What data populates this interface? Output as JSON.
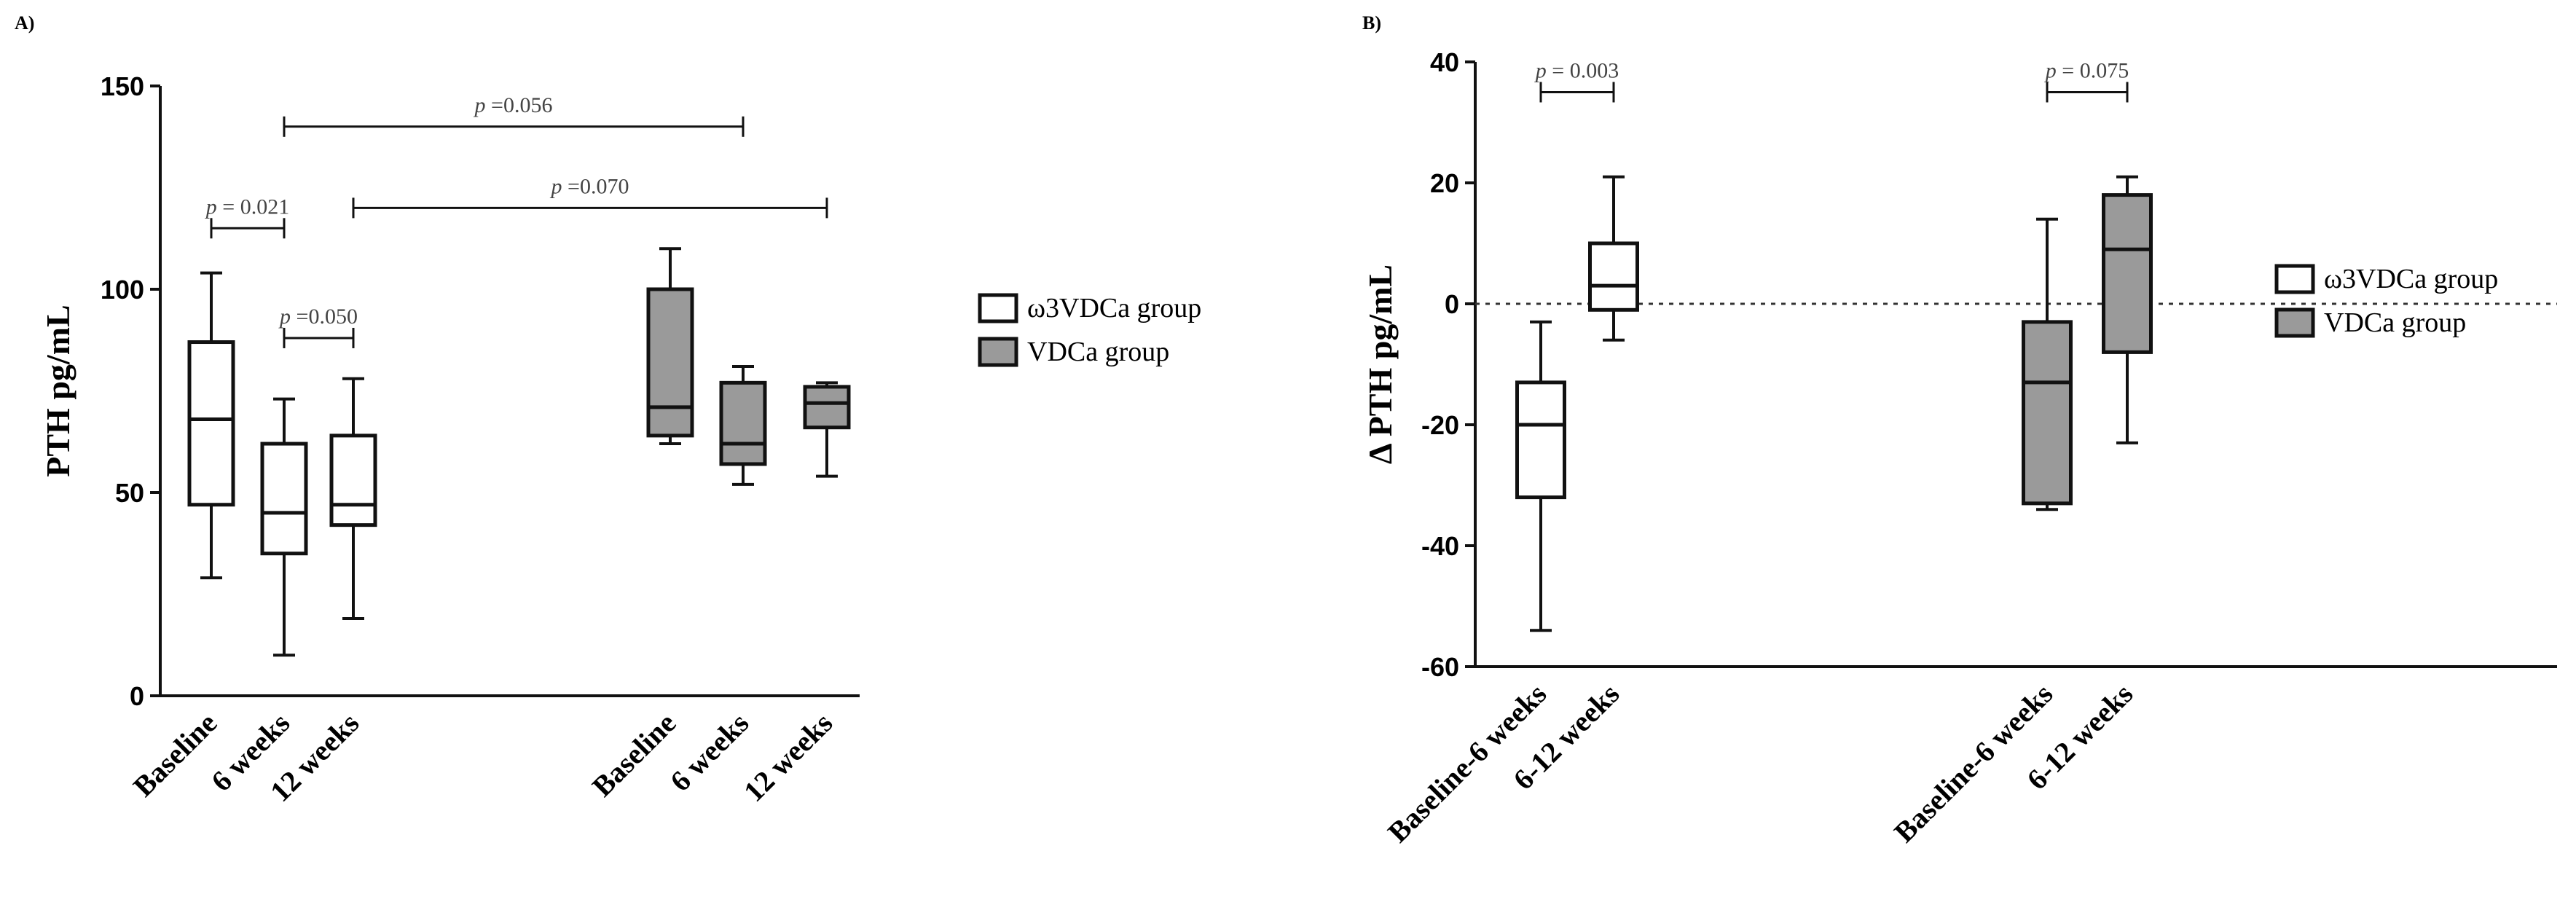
{
  "colors": {
    "open": "#ffffff",
    "filled": "#9a9a9a",
    "stroke": "#111111",
    "annotation": "#444444"
  },
  "chart_data": [
    {
      "type": "box",
      "panel": "A)",
      "ylabel": "PTH pg/mL",
      "ylim": [
        0,
        150
      ],
      "yticks": [
        0,
        50,
        100,
        150
      ],
      "categories": [
        "Baseline",
        "6 weeks",
        "12 weeks",
        "Baseline",
        "6 weeks",
        "12 weeks"
      ],
      "series": [
        {
          "name": "ω3VDCa group",
          "boxes": [
            {
              "category": "Baseline",
              "min": 29,
              "q1": 47,
              "median": 68,
              "q3": 87,
              "max": 104
            },
            {
              "category": "6 weeks",
              "min": 10,
              "q1": 35,
              "median": 45,
              "q3": 62,
              "max": 73
            },
            {
              "category": "12 weeks",
              "min": 19,
              "q1": 42,
              "median": 47,
              "q3": 64,
              "max": 78
            }
          ]
        },
        {
          "name": "VDCa group",
          "boxes": [
            {
              "category": "Baseline",
              "min": 62,
              "q1": 64,
              "median": 71,
              "q3": 100,
              "max": 110
            },
            {
              "category": "6 weeks",
              "min": 52,
              "q1": 57,
              "median": 62,
              "q3": 77,
              "max": 81
            },
            {
              "category": "12 weeks",
              "min": 54,
              "q1": 66,
              "median": 72,
              "q3": 76,
              "max": 77
            }
          ]
        }
      ],
      "annotations": [
        {
          "p": "p",
          "text": "=0.056",
          "from": 1,
          "to": 4,
          "y": 140
        },
        {
          "p": "p",
          "text": "= 0.021",
          "from": 0,
          "to": 1,
          "y": 115
        },
        {
          "p": "p",
          "text": "=0.070",
          "from": 2,
          "to": 5,
          "y": 120
        },
        {
          "p": "p",
          "text": "=0.050",
          "from": 1,
          "to": 2,
          "y": 88
        }
      ],
      "legend": [
        "ω3VDCa group",
        "VDCa group"
      ],
      "legend_position": "right"
    },
    {
      "type": "box",
      "panel": "B)",
      "ylabel": "Δ PTH pg/mL",
      "ylim": [
        -60,
        40
      ],
      "yticks": [
        -60,
        -40,
        -20,
        0,
        20,
        40
      ],
      "reference_line": 0,
      "categories": [
        "Baseline-6 weeks",
        "6-12 weeks",
        "Baseline-6 weeks",
        "6-12 weeks"
      ],
      "series": [
        {
          "name": "ω3VDCa group",
          "boxes": [
            {
              "category": "Baseline-6 weeks",
              "min": -54,
              "q1": -32,
              "median": -20,
              "q3": -13,
              "max": -3
            },
            {
              "category": "6-12 weeks",
              "min": -6,
              "q1": -1,
              "median": 3,
              "q3": 10,
              "max": 21
            }
          ]
        },
        {
          "name": "VDCa group",
          "boxes": [
            {
              "category": "Baseline-6 weeks",
              "min": -34,
              "q1": -33,
              "median": -13,
              "q3": -3,
              "max": 14
            },
            {
              "category": "6-12 weeks",
              "min": -23,
              "q1": -8,
              "median": 9,
              "q3": 18,
              "max": 21
            }
          ]
        }
      ],
      "annotations": [
        {
          "p": "p",
          "text": "= 0.003",
          "from": 0,
          "to": 1,
          "y": 35
        },
        {
          "p": "p",
          "text": "= 0.075",
          "from": 2,
          "to": 3,
          "y": 35
        }
      ],
      "legend": [
        "ω3VDCa group",
        "VDCa group"
      ],
      "legend_position": "right"
    }
  ]
}
